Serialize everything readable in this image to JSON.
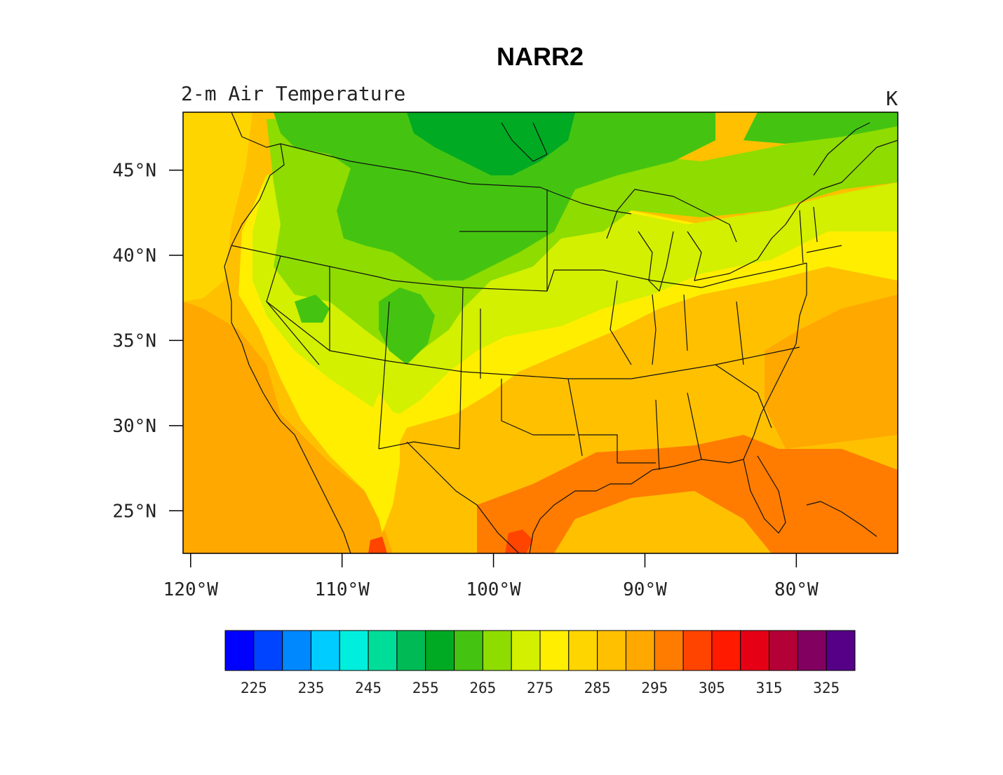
{
  "title": "NARR2",
  "subtitle_left": "2-m Air Temperature",
  "subtitle_right": "K",
  "map": {
    "lon_range": [
      -120.5,
      -73.3
    ],
    "lat_range": [
      22.5,
      48.4
    ],
    "lat_ticks": [
      {
        "value": 45,
        "label": "45°N"
      },
      {
        "value": 40,
        "label": "40°N"
      },
      {
        "value": 35,
        "label": "35°N"
      },
      {
        "value": 30,
        "label": "30°N"
      },
      {
        "value": 25,
        "label": "25°N"
      }
    ],
    "lon_ticks": [
      {
        "value": -120,
        "label": "120°W"
      },
      {
        "value": -110,
        "label": "110°W"
      },
      {
        "value": -100,
        "label": "100°W"
      },
      {
        "value": -90,
        "label": "90°W"
      },
      {
        "value": -80,
        "label": "80°W"
      }
    ]
  },
  "colorbar": {
    "colors": [
      "#0000ff",
      "#0044ff",
      "#0088ff",
      "#00ccff",
      "#00eedd",
      "#00dd99",
      "#00bb55",
      "#00aa22",
      "#44c411",
      "#8edc00",
      "#d2f000",
      "#ffee00",
      "#ffd500",
      "#ffc000",
      "#ffa800",
      "#ff7c00",
      "#ff4400",
      "#ff1a00",
      "#e60016",
      "#b30036",
      "#820060",
      "#560088"
    ],
    "labels": [
      "225",
      "235",
      "245",
      "255",
      "265",
      "275",
      "285",
      "295",
      "305",
      "315",
      "325"
    ]
  }
}
